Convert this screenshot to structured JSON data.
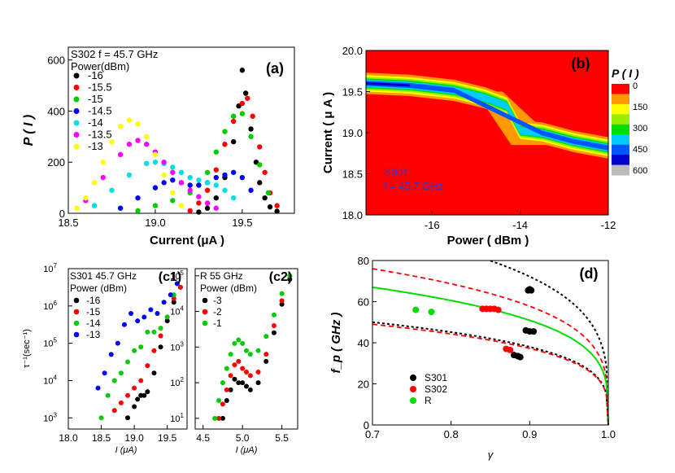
{
  "chart_data": [
    {
      "panel": "(a)",
      "type": "scatter",
      "title": "S302  f = 45.7 GHz",
      "legend_title": "Power(dBm)",
      "xlabel": "Current (μA )",
      "ylabel": "P ( I )",
      "xlim": [
        18.5,
        19.8
      ],
      "ylim": [
        0,
        650
      ],
      "xticks": [
        "18.5",
        "19.0",
        "19.5"
      ],
      "yticks": [
        "0",
        "200",
        "400",
        "600"
      ],
      "series": [
        {
          "name": "-16",
          "color": "#000000",
          "x": [
            19.25,
            19.3,
            19.35,
            19.4,
            19.45,
            19.48,
            19.5,
            19.52,
            19.55,
            19.58,
            19.6,
            19.63,
            19.66,
            19.7
          ],
          "y": [
            5,
            20,
            60,
            140,
            280,
            420,
            560,
            470,
            330,
            200,
            120,
            60,
            25,
            8
          ]
        },
        {
          "name": "-15.5",
          "color": "#ff0000",
          "x": [
            19.2,
            19.25,
            19.3,
            19.35,
            19.4,
            19.45,
            19.5,
            19.53,
            19.56,
            19.6,
            19.63,
            19.66,
            19.7
          ],
          "y": [
            10,
            40,
            90,
            170,
            270,
            360,
            430,
            450,
            380,
            260,
            160,
            80,
            30
          ]
        },
        {
          "name": "-15",
          "color": "#00cc00",
          "x": [
            18.9,
            19.0,
            19.1,
            19.2,
            19.25,
            19.3,
            19.35,
            19.4,
            19.45,
            19.5,
            19.55,
            19.6,
            19.65
          ],
          "y": [
            10,
            30,
            50,
            80,
            110,
            160,
            240,
            320,
            380,
            390,
            300,
            190,
            80
          ]
        },
        {
          "name": "-14.5",
          "color": "#0000ff",
          "x": [
            18.8,
            18.9,
            19.0,
            19.05,
            19.1,
            19.15,
            19.2,
            19.25,
            19.3,
            19.35,
            19.4,
            19.45,
            19.5,
            19.55
          ],
          "y": [
            20,
            60,
            100,
            120,
            130,
            120,
            110,
            110,
            120,
            140,
            150,
            160,
            140,
            90
          ]
        },
        {
          "name": "-14",
          "color": "#00e0e0",
          "x": [
            18.65,
            18.75,
            18.85,
            18.95,
            19.0,
            19.05,
            19.1,
            19.15,
            19.2,
            19.25,
            19.3,
            19.35,
            19.4,
            19.45
          ],
          "y": [
            30,
            90,
            150,
            195,
            200,
            195,
            180,
            160,
            140,
            130,
            120,
            110,
            90,
            60
          ]
        },
        {
          "name": "-13.5",
          "color": "#ff00ff",
          "x": [
            18.6,
            18.7,
            18.8,
            18.85,
            18.9,
            18.95,
            19.0,
            19.05,
            19.1,
            19.15,
            19.2,
            19.25,
            19.3,
            19.35
          ],
          "y": [
            50,
            140,
            230,
            270,
            285,
            270,
            240,
            200,
            160,
            120,
            90,
            65,
            40,
            20
          ]
        },
        {
          "name": "-13",
          "color": "#ffff00",
          "x": [
            18.55,
            18.6,
            18.65,
            18.7,
            18.75,
            18.8,
            18.85,
            18.9,
            18.95,
            19.0,
            19.05,
            19.1,
            19.15
          ],
          "y": [
            20,
            60,
            120,
            200,
            280,
            340,
            365,
            350,
            300,
            230,
            150,
            80,
            30
          ]
        }
      ]
    },
    {
      "panel": "(b)",
      "type": "heatmap",
      "xlabel": "Power ( dBm )",
      "ylabel": "Current ( μ A )",
      "xlim": [
        -17.5,
        -12
      ],
      "ylim": [
        18.0,
        20.0
      ],
      "xticks": [
        "-16",
        "-14",
        "-12"
      ],
      "yticks": [
        "18.0",
        "18.5",
        "19.0",
        "19.5",
        "20.0"
      ],
      "annotation": [
        "S301",
        "f = 45.7 GHz"
      ],
      "colorbar_title": "P ( I )",
      "colorbar_labels": [
        "0",
        "150",
        "300",
        "450",
        "600"
      ],
      "colorbar_colors": [
        "#ff0000",
        "#ff9900",
        "#ffff00",
        "#99ee00",
        "#00dd00",
        "#00ccff",
        "#0055ff",
        "#0000cc",
        "#bbbbbb"
      ],
      "ridge_low": [
        [
          -17.5,
          19.58
        ],
        [
          -16.5,
          19.55
        ],
        [
          -15.5,
          19.48
        ],
        [
          -14.8,
          19.4
        ],
        [
          -14.3,
          19.3
        ],
        [
          -14.0,
          19.0
        ],
        [
          -13.5,
          18.97
        ],
        [
          -12.8,
          18.87
        ],
        [
          -12.0,
          18.78
        ]
      ],
      "ridge_high": [
        [
          -17.5,
          19.62
        ],
        [
          -16.5,
          19.6
        ],
        [
          -15.5,
          19.55
        ],
        [
          -14.7,
          19.45
        ],
        [
          -14.2,
          19.35
        ],
        [
          -13.9,
          19.05
        ],
        [
          -13.3,
          19.02
        ],
        [
          -12.6,
          18.92
        ],
        [
          -12.0,
          18.85
        ]
      ]
    },
    {
      "panel": "(c1)",
      "type": "scatter",
      "title": "S301  45.7 GHz",
      "legend_title": "Power (dBm)",
      "xlabel": "I (μA)",
      "ylabel": "τ⁻¹(sec⁻¹)",
      "yscale": "log",
      "xlim": [
        18.0,
        19.8
      ],
      "ylim_exp": [
        2.7,
        7.0
      ],
      "xticks": [
        "18.0",
        "18.5",
        "19.0",
        "19.5"
      ],
      "series": [
        {
          "name": "-16",
          "color": "#000000",
          "x": [
            18.9,
            19.0,
            19.05,
            19.1,
            19.15,
            19.2,
            19.3,
            19.4,
            19.5,
            19.6,
            19.7
          ],
          "log10y": [
            3.0,
            3.3,
            3.5,
            3.6,
            3.6,
            3.7,
            4.2,
            4.9,
            5.6,
            6.1,
            6.5
          ]
        },
        {
          "name": "-15",
          "color": "#ff0000",
          "x": [
            18.7,
            18.8,
            18.9,
            19.0,
            19.1,
            19.2,
            19.3,
            19.4,
            19.5,
            19.6,
            19.7
          ],
          "log10y": [
            3.2,
            3.4,
            3.6,
            3.8,
            4.0,
            4.4,
            4.8,
            5.2,
            5.7,
            6.2,
            6.5
          ]
        },
        {
          "name": "-14",
          "color": "#00cc00",
          "x": [
            18.5,
            18.6,
            18.7,
            18.8,
            18.9,
            19.0,
            19.1,
            19.2,
            19.3,
            19.4,
            19.5,
            19.6,
            19.65
          ],
          "log10y": [
            3.0,
            3.6,
            4.0,
            4.2,
            4.5,
            4.8,
            4.9,
            5.3,
            5.3,
            5.4,
            5.7,
            6.3,
            6.6
          ]
        },
        {
          "name": "-13",
          "color": "#0000ff",
          "x": [
            18.45,
            18.55,
            18.65,
            18.75,
            18.85,
            18.95,
            19.05,
            19.15,
            19.25,
            19.35,
            19.45,
            19.55,
            19.65
          ],
          "log10y": [
            3.8,
            4.2,
            4.7,
            5.0,
            5.5,
            5.8,
            5.6,
            5.7,
            5.9,
            5.8,
            6.1,
            6.3,
            6.6
          ]
        }
      ]
    },
    {
      "panel": "(c2)",
      "type": "scatter",
      "title": "R  55 GHz",
      "legend_title": "Power (dBm)",
      "xlabel": "I (μA)",
      "yscale": "log",
      "xlim": [
        4.4,
        5.7
      ],
      "ylim_exp": [
        0.7,
        5.2
      ],
      "xticks": [
        "4.5",
        "5.0",
        "5.5"
      ],
      "series": [
        {
          "name": "-3",
          "color": "#000000",
          "x": [
            4.75,
            4.8,
            4.85,
            4.9,
            4.95,
            5.0,
            5.05,
            5.1,
            5.2,
            5.3,
            5.4,
            5.5,
            5.6
          ],
          "log10y": [
            1.0,
            1.5,
            1.8,
            2.1,
            2.0,
            2.0,
            1.9,
            1.8,
            2.0,
            2.6,
            3.4,
            4.2,
            4.9
          ]
        },
        {
          "name": "-2",
          "color": "#ff0000",
          "x": [
            4.7,
            4.75,
            4.8,
            4.85,
            4.9,
            4.95,
            5.0,
            5.05,
            5.1,
            5.2,
            5.3,
            5.4,
            5.5,
            5.6
          ],
          "log10y": [
            1.0,
            1.4,
            1.8,
            2.2,
            2.5,
            2.6,
            2.4,
            2.3,
            2.2,
            2.3,
            2.8,
            3.6,
            4.3,
            5.0
          ]
        },
        {
          "name": "-1",
          "color": "#00cc00",
          "x": [
            4.65,
            4.7,
            4.75,
            4.8,
            4.85,
            4.9,
            4.95,
            5.0,
            5.05,
            5.1,
            5.2,
            5.3,
            5.4,
            5.5,
            5.6
          ],
          "log10y": [
            1.0,
            1.5,
            2.0,
            2.4,
            2.8,
            3.1,
            3.2,
            3.1,
            2.9,
            2.8,
            2.9,
            3.3,
            3.9,
            4.5,
            5.0
          ]
        }
      ]
    },
    {
      "panel": "(d)",
      "type": "scatter",
      "xlabel": "γ",
      "ylabel": "f_p ( GHz )",
      "xlim": [
        0.7,
        1.0
      ],
      "ylim": [
        0,
        80
      ],
      "xticks": [
        "0.7",
        "0.8",
        "0.9",
        "1.0"
      ],
      "yticks": [
        "0",
        "20",
        "40",
        "60",
        "80"
      ],
      "series": [
        {
          "name": "S301",
          "color": "#000000",
          "x": [
            0.898,
            0.9,
            0.902,
            0.895,
            0.9,
            0.905,
            0.88,
            0.885,
            0.888
          ],
          "y": [
            65.5,
            66,
            65.5,
            46,
            45.5,
            45.5,
            34,
            33.5,
            33
          ]
        },
        {
          "name": "S302",
          "color": "#ff0000",
          "x": [
            0.84,
            0.845,
            0.85,
            0.855,
            0.86,
            0.87,
            0.875
          ],
          "y": [
            56.5,
            56.5,
            56.5,
            56.5,
            56,
            37,
            36.5
          ]
        },
        {
          "name": "R",
          "color": "#00dd00",
          "x": [
            0.755,
            0.775
          ],
          "y": [
            56,
            55
          ]
        }
      ],
      "curves": [
        {
          "style": "black-dotted",
          "A": 95
        },
        {
          "style": "red-dashed",
          "A": 76
        },
        {
          "style": "green-solid",
          "A": 67
        },
        {
          "style": "black-dotted",
          "A": 50
        },
        {
          "style": "red-dashed",
          "A": 49
        }
      ]
    }
  ]
}
